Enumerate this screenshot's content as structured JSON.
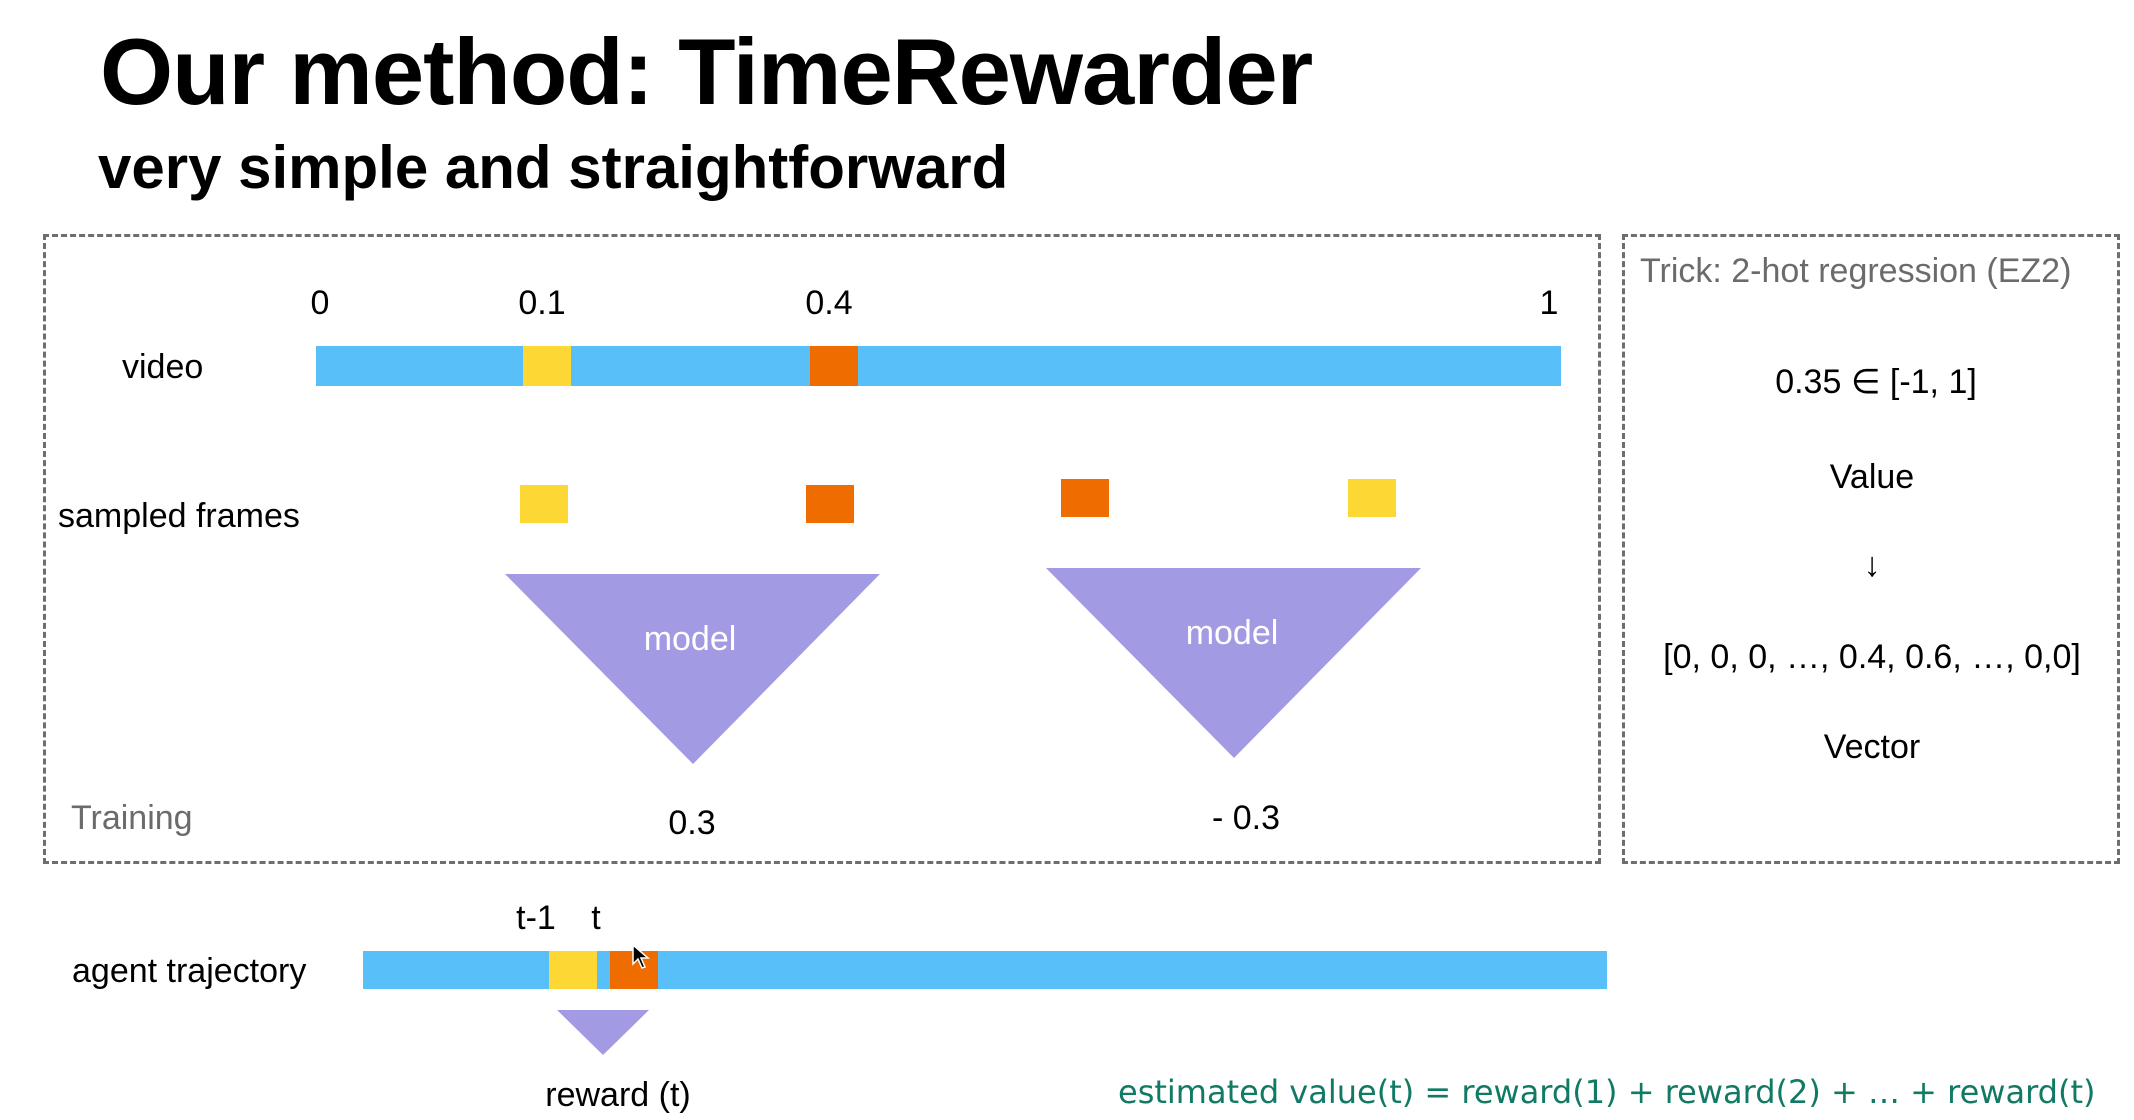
{
  "header": {
    "title": "Our method: TimeRewarder",
    "subtitle": "very simple and straightforward"
  },
  "training": {
    "label": "Training",
    "video_label": "video",
    "sampled_frames_label": "sampled frames",
    "ticks": [
      "0",
      "0.1",
      "0.4",
      "1"
    ],
    "model_left_label": "model",
    "model_right_label": "model",
    "output_left": "0.3",
    "output_right": "- 0.3"
  },
  "trick": {
    "title": "Trick: 2-hot regression (EZ2)",
    "value_example": "0.35 ∈ [-1, 1]",
    "value_label": "Value",
    "arrow": "↓",
    "vector_example": "[0, 0, 0, …, 0.4, 0.6, …, 0,0]",
    "vector_label": "Vector"
  },
  "inference": {
    "agent_trajectory_label": "agent trajectory",
    "tick_prev": "t-1",
    "tick_cur": "t",
    "reward_label": "reward (t)",
    "formula": "estimated value(t) = reward(1) + reward(2) + … + reward(t)"
  },
  "colors": {
    "bar": "#59bff8",
    "yellow_frame": "#fdd835",
    "orange_frame": "#ef6c00",
    "model": "#a29be3",
    "formula_text": "#117a65"
  }
}
